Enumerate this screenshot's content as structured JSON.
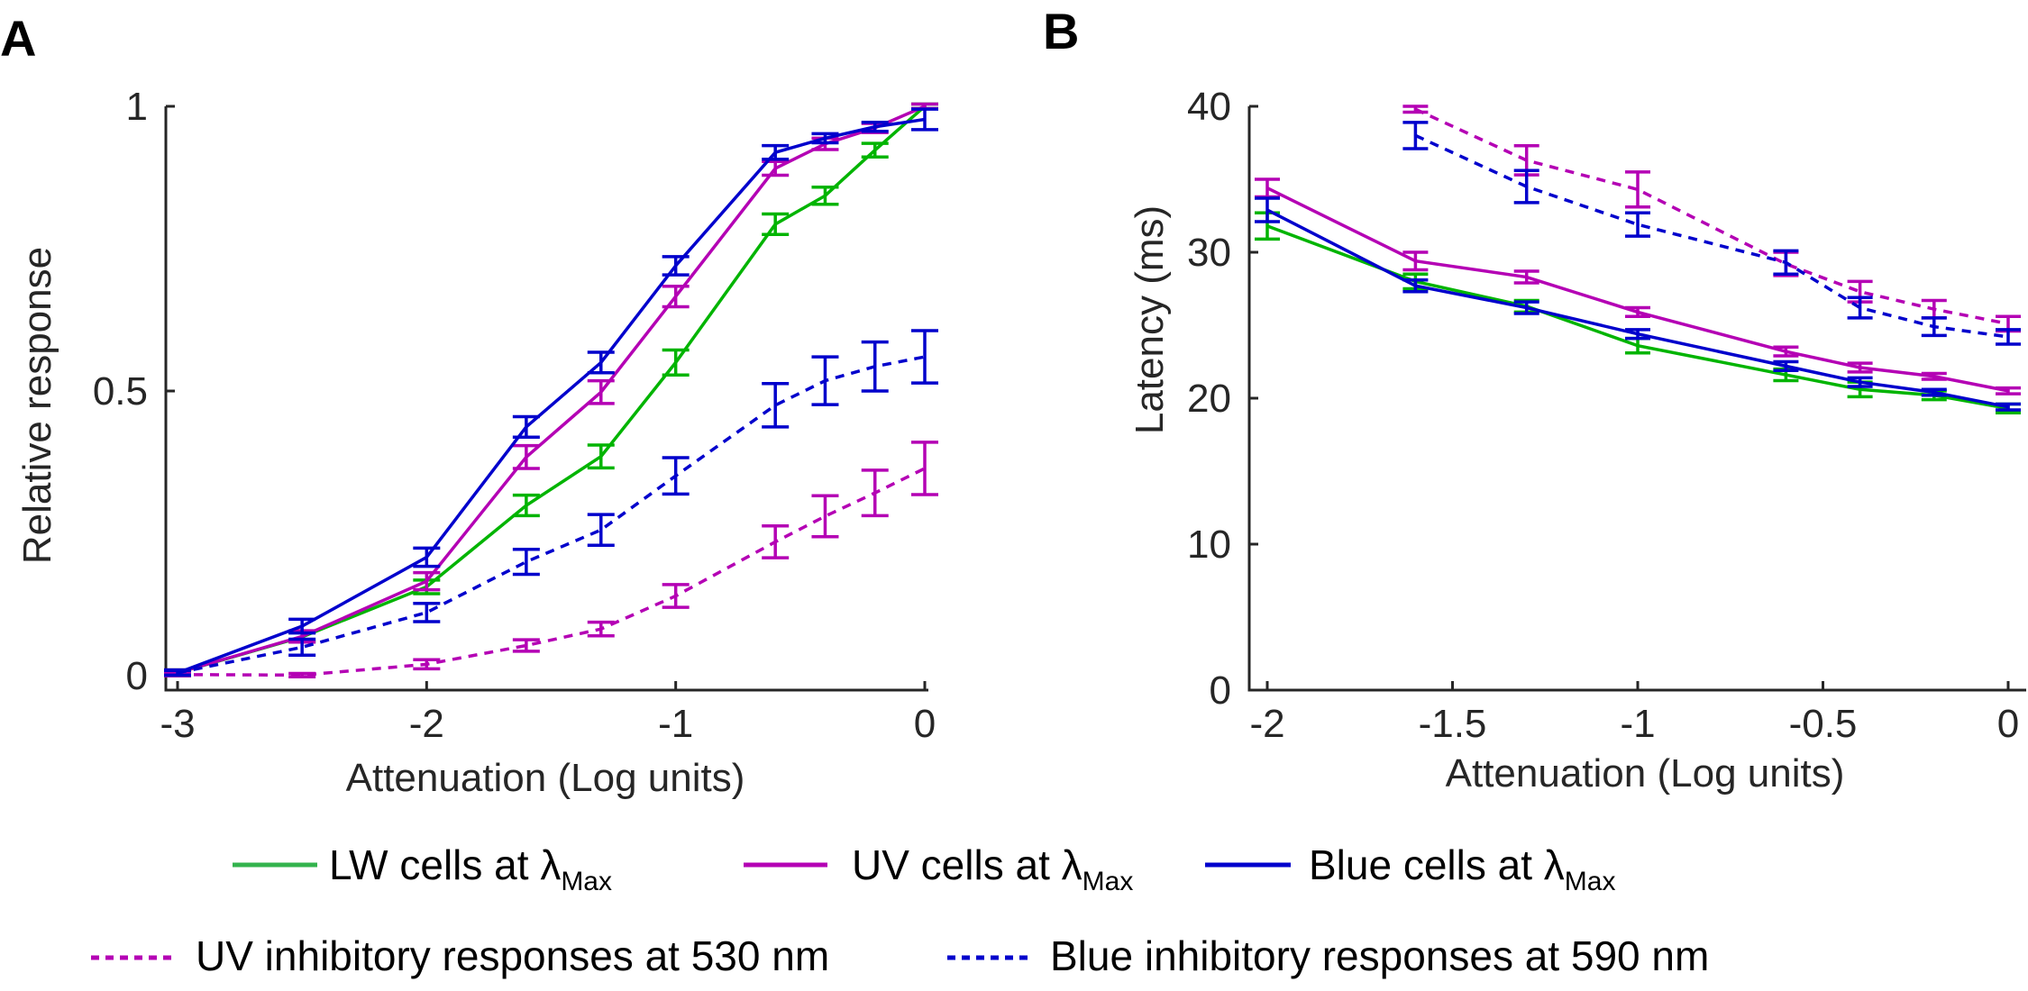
{
  "figure": {
    "panel_labels": [
      "A",
      "B"
    ]
  },
  "colors": {
    "lw": "#00b400",
    "uv": "#b400b4",
    "blue": "#0000cc",
    "legend_lw": "#33b34d"
  },
  "legend": {
    "items": [
      {
        "id": "lw",
        "label": "LW cells at ",
        "symbol": "λ",
        "sub": "Max",
        "color": "#33b34d",
        "dash": false
      },
      {
        "id": "uv",
        "label": "UV cells at ",
        "symbol": "λ",
        "sub": "Max",
        "color": "#b400b4",
        "dash": false
      },
      {
        "id": "blue",
        "label": "Blue cells at ",
        "symbol": "λ",
        "sub": "Max",
        "color": "#0000cc",
        "dash": false
      },
      {
        "id": "uv_inh",
        "label": "UV inhibitory responses at 530 nm",
        "color": "#b400b4",
        "dash": true
      },
      {
        "id": "blue_inh",
        "label": "Blue inhibitory responses at 590 nm",
        "color": "#0000cc",
        "dash": true
      }
    ]
  },
  "chart_data": [
    {
      "panel": "A",
      "type": "line",
      "title": "",
      "xlabel": "Attenuation (Log units)",
      "ylabel": "Relative response",
      "xlim": [
        -3.05,
        0.02
      ],
      "ylim": [
        -0.035,
        1
      ],
      "xticks": [
        -3,
        -2,
        -1,
        0
      ],
      "xtick_labels": [
        "-3",
        "-2",
        "-1",
        "0"
      ],
      "yticks": [
        0,
        0.5,
        1
      ],
      "ytick_labels": [
        "0",
        "0.5",
        "1"
      ],
      "grid": false,
      "legend_position": "bottom",
      "x": [
        -3,
        -2.5,
        -2,
        -1.6,
        -1.3,
        -1,
        -0.6,
        -0.4,
        -0.2,
        0
      ],
      "series": [
        {
          "name": "LW cells at λMax",
          "color": "#00b400",
          "dash": false,
          "values": [
            0.005,
            0.068,
            0.156,
            0.299,
            0.385,
            0.55,
            0.793,
            0.843,
            0.923,
            1.0
          ],
          "errors": [
            0.005,
            0.008,
            0.012,
            0.018,
            0.02,
            0.022,
            0.018,
            0.015,
            0.012,
            0.004
          ]
        },
        {
          "name": "UV cells at λMax",
          "color": "#b400b4",
          "dash": false,
          "values": [
            0.005,
            0.069,
            0.166,
            0.384,
            0.498,
            0.666,
            0.891,
            0.934,
            0.962,
            1.0
          ],
          "errors": [
            0.005,
            0.01,
            0.015,
            0.02,
            0.02,
            0.018,
            0.012,
            0.01,
            0.008,
            0.004
          ]
        },
        {
          "name": "Blue cells at λMax",
          "color": "#0000cc",
          "dash": false,
          "values": [
            0.005,
            0.087,
            0.208,
            0.437,
            0.55,
            0.72,
            0.919,
            0.944,
            0.964,
            0.977
          ],
          "errors": [
            0.005,
            0.012,
            0.016,
            0.018,
            0.018,
            0.016,
            0.012,
            0.008,
            0.008,
            0.018
          ]
        },
        {
          "name": "UV inhibitory responses at 530 nm",
          "color": "#b400b4",
          "dash": true,
          "values": [
            0.002,
            0.001,
            0.02,
            0.053,
            0.082,
            0.14,
            0.235,
            0.28,
            0.321,
            0.364
          ],
          "errors": [
            0.002,
            0.003,
            0.008,
            0.01,
            0.012,
            0.02,
            0.028,
            0.036,
            0.04,
            0.046
          ]
        },
        {
          "name": "Blue inhibitory responses at 590 nm",
          "color": "#0000cc",
          "dash": true,
          "values": [
            0.005,
            0.05,
            0.111,
            0.2,
            0.256,
            0.351,
            0.475,
            0.518,
            0.543,
            0.56
          ],
          "errors": [
            0.004,
            0.014,
            0.016,
            0.022,
            0.027,
            0.032,
            0.038,
            0.042,
            0.043,
            0.046
          ]
        }
      ]
    },
    {
      "panel": "B",
      "type": "line",
      "title": "",
      "xlabel": "Attenuation (Log units)",
      "ylabel": "Latency (ms)",
      "xlim": [
        -2.05,
        0.04
      ],
      "ylim": [
        0,
        40
      ],
      "xticks": [
        -2,
        -1.5,
        -1,
        -0.5,
        0
      ],
      "xtick_labels": [
        "-2",
        "-1.5",
        "-1",
        "-0.5",
        "0"
      ],
      "yticks": [
        0,
        10,
        20,
        30,
        40
      ],
      "ytick_labels": [
        "0",
        "10",
        "20",
        "30",
        "40"
      ],
      "grid": false,
      "legend_position": "bottom",
      "x": [
        -2,
        -1.6,
        -1.3,
        -1,
        -0.6,
        -0.4,
        -0.2,
        0
      ],
      "series": [
        {
          "name": "LW cells at λMax",
          "color": "#00b400",
          "dash": false,
          "values": [
            31.8,
            28.0,
            26.3,
            23.6,
            21.6,
            20.6,
            20.2,
            19.3
          ],
          "errors": [
            0.9,
            0.5,
            0.4,
            0.5,
            0.4,
            0.5,
            0.3,
            0.3
          ]
        },
        {
          "name": "UV cells at λMax",
          "color": "#b400b4",
          "dash": false,
          "values": [
            34.4,
            29.4,
            28.3,
            25.9,
            23.2,
            22.1,
            21.5,
            20.5
          ],
          "errors": [
            0.6,
            0.6,
            0.4,
            0.3,
            0.3,
            0.3,
            0.2,
            0.2
          ]
        },
        {
          "name": "Blue cells at λMax",
          "color": "#0000cc",
          "dash": false,
          "values": [
            32.9,
            27.7,
            26.2,
            24.4,
            22.2,
            21.1,
            20.4,
            19.4
          ],
          "errors": [
            0.8,
            0.4,
            0.4,
            0.3,
            0.3,
            0.3,
            0.2,
            0.2
          ]
        },
        {
          "name": "UV inhibitory responses at 530 nm",
          "color": "#b400b4",
          "dash": true,
          "values": [
            null,
            39.8,
            36.3,
            34.3,
            29.2,
            27.3,
            26.1,
            25.1
          ],
          "errors": [
            null,
            0.2,
            1.0,
            1.2,
            0.8,
            0.7,
            0.6,
            0.5
          ]
        },
        {
          "name": "Blue inhibitory responses at 590 nm",
          "color": "#0000cc",
          "dash": true,
          "values": [
            null,
            38.0,
            34.5,
            31.9,
            29.3,
            26.2,
            24.9,
            24.2
          ],
          "errors": [
            null,
            0.9,
            1.1,
            0.8,
            0.8,
            0.7,
            0.6,
            0.5
          ]
        }
      ]
    }
  ]
}
